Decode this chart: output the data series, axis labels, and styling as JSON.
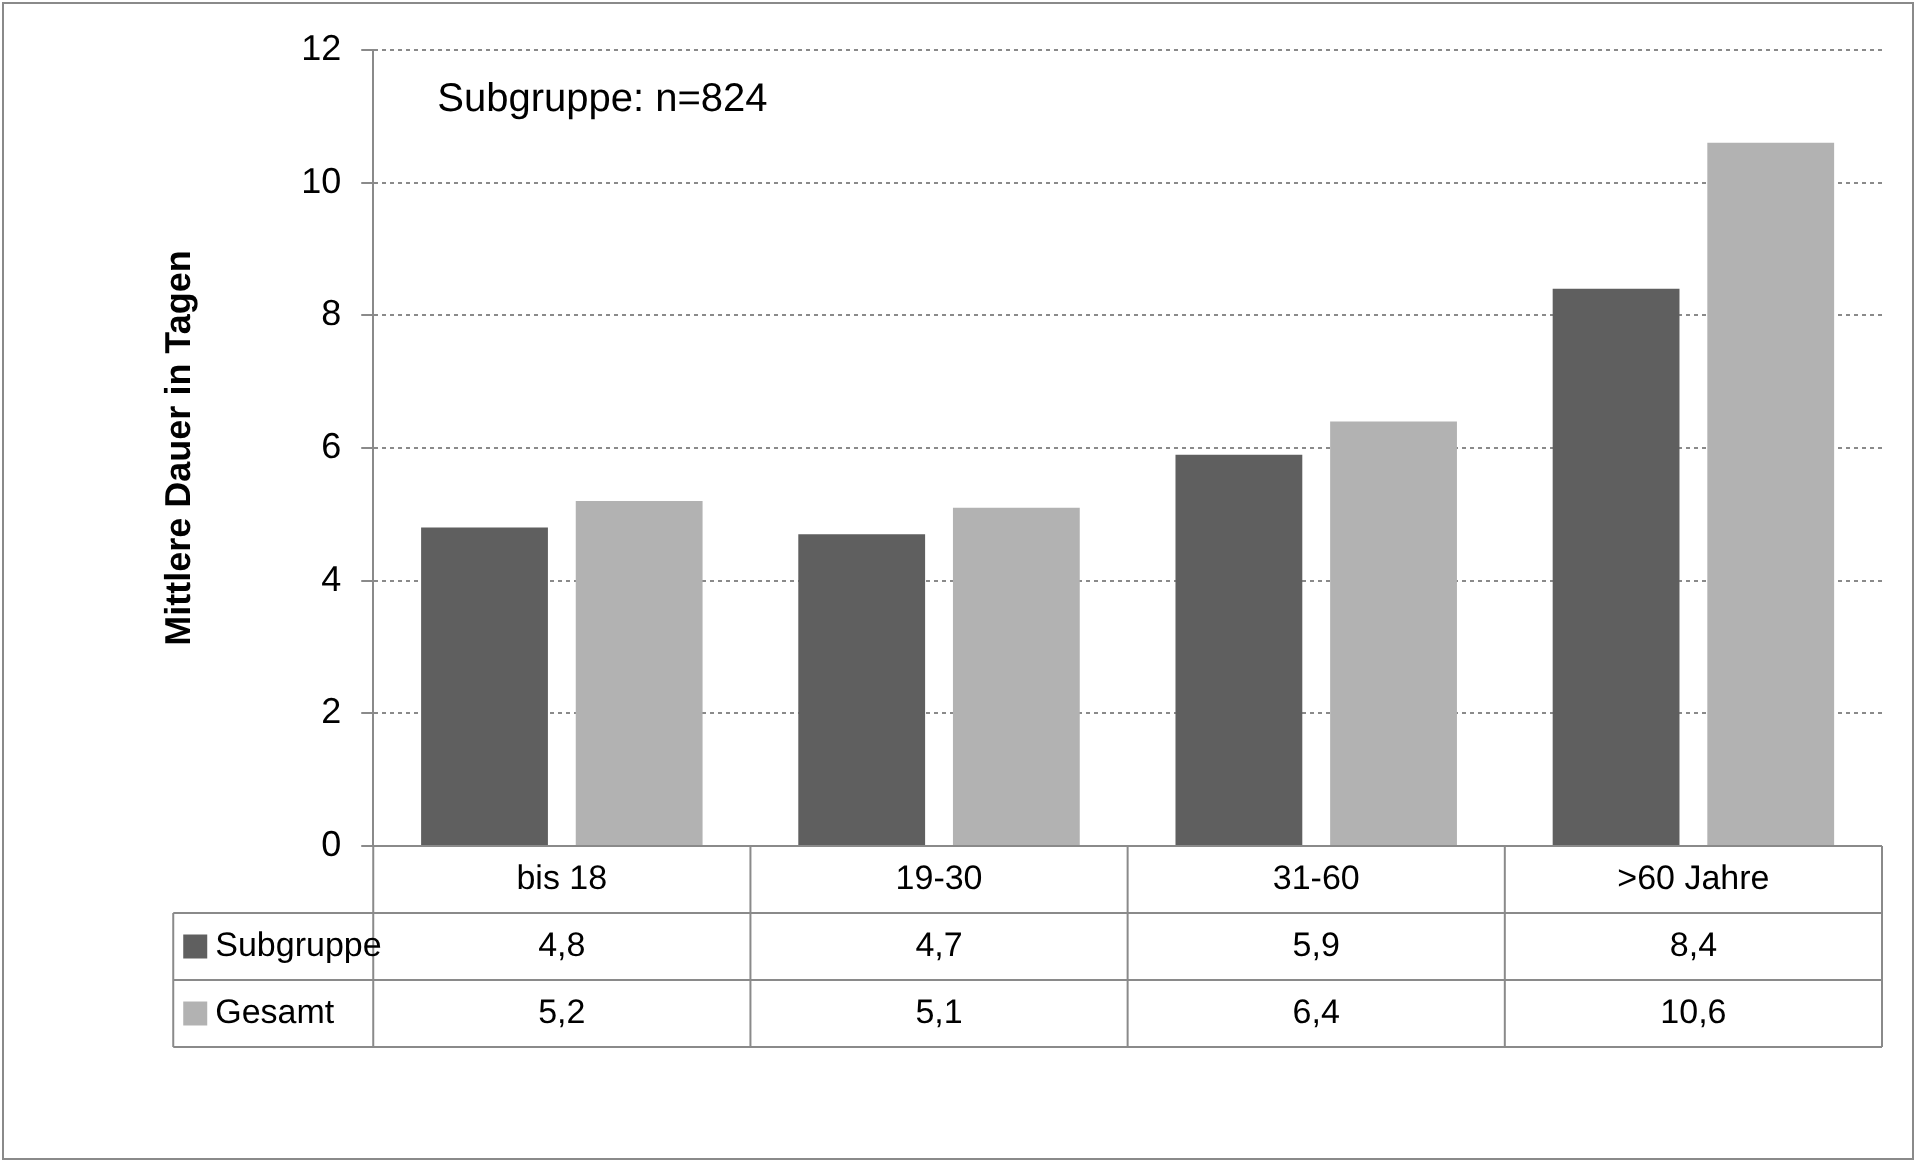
{
  "chart_data": {
    "type": "bar",
    "ylabel": "Mittlere Dauer in Tagen",
    "annotations": [
      "Subgruppe: n=824"
    ],
    "categories": [
      "bis 18",
      "19-30",
      "31-60",
      ">60 Jahre"
    ],
    "series": [
      {
        "name": "Subgruppe",
        "color": "#5f5f5f",
        "values": [
          4.8,
          4.7,
          5.9,
          8.4
        ],
        "value_labels": [
          "4,8",
          "4,7",
          "5,9",
          "8,4"
        ]
      },
      {
        "name": "Gesamt",
        "color": "#b2b2b2",
        "values": [
          5.2,
          5.1,
          6.4,
          10.6
        ],
        "value_labels": [
          "5,2",
          "5,1",
          "6,4",
          "10,6"
        ]
      }
    ],
    "ylim": [
      0,
      12
    ],
    "yticks": [
      0,
      2,
      4,
      6,
      8,
      10,
      12
    ],
    "grid": "y",
    "legend": "bottom left"
  }
}
